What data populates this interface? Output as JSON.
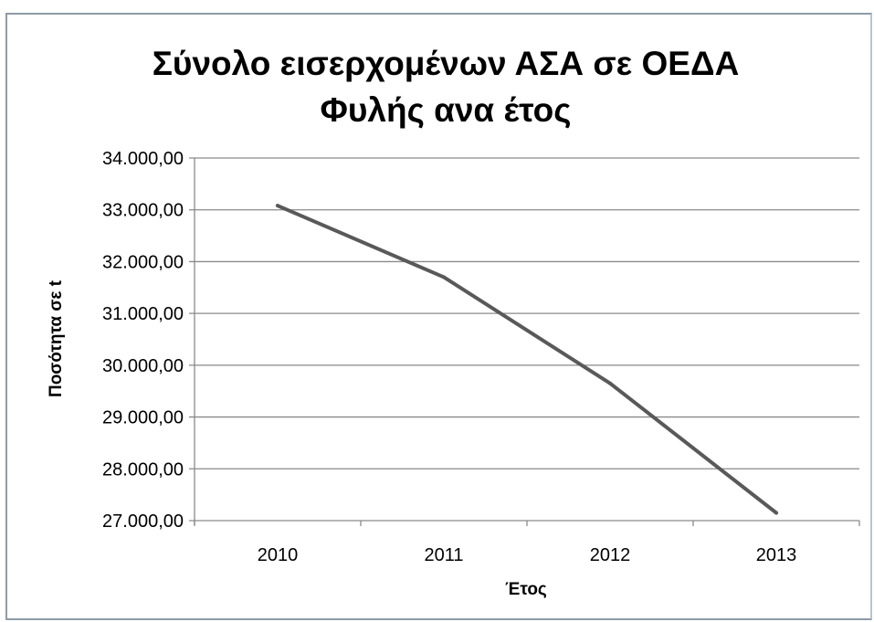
{
  "chart_data": {
    "type": "line",
    "title": [
      "Σύνολο εισερχομένων ΑΣΑ σε ΟΕΔΑ",
      "Φυλής ανα έτος"
    ],
    "xlabel": "Έτος",
    "ylabel": "Ποσότητα σε  t",
    "categories": [
      "2010",
      "2011",
      "2012",
      "2013"
    ],
    "series": [
      {
        "values": [
          33080,
          31700,
          29650,
          27150
        ],
        "color": "#595959"
      }
    ],
    "ylim": [
      27000,
      34000
    ],
    "yticks": [
      27000,
      28000,
      29000,
      30000,
      31000,
      32000,
      33000,
      34000
    ],
    "ytick_labels": [
      "27.000,00",
      "28.000,00",
      "29.000,00",
      "30.000,00",
      "31.000,00",
      "32.000,00",
      "33.000,00",
      "34.000,00"
    ],
    "grid": "horizontal",
    "legend": "none"
  }
}
